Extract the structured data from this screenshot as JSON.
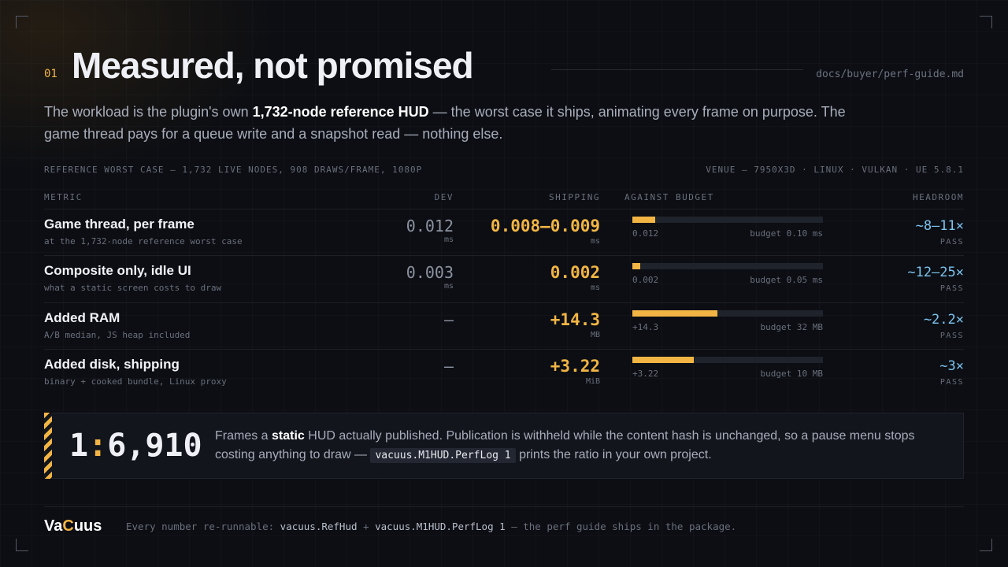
{
  "header": {
    "number": "01",
    "title": "Measured, not promised",
    "path": "docs/buyer/perf-guide.md"
  },
  "intro": [
    "The workload is the plugin's own ",
    "1,732-node reference HUD",
    " — the worst case it ships, animating every frame on purpose. The game thread pays for a queue write and a snapshot read — nothing else."
  ],
  "meta": {
    "left": "REFERENCE WORST CASE — 1,732 LIVE NODES, 908 DRAWS/FRAME, 1080P",
    "right": "VENUE — 7950X3D · LINUX · VULKAN · UE 5.8.1"
  },
  "table": {
    "columns": [
      "METRIC",
      "DEV",
      "SHIPPING",
      "AGAINST BUDGET",
      "HEADROOM"
    ],
    "rows": [
      {
        "name": "Game thread, per frame",
        "sub": "at the 1,732-node reference worst case",
        "dev": "0.012",
        "dev_unit": "ms",
        "shipping": "0.008–0.009",
        "shipping_unit": "ms",
        "bar": {
          "value": 0.012,
          "budget": 0.1,
          "label": "0.012",
          "budget_label": "budget 0.10 ms"
        },
        "headroom": "~8–11×",
        "status": "PASS"
      },
      {
        "name": "Composite only, idle UI",
        "sub": "what a static screen costs to draw",
        "dev": "0.003",
        "dev_unit": "ms",
        "shipping": "0.002",
        "shipping_unit": "ms",
        "bar": {
          "value": 0.002,
          "budget": 0.05,
          "label": "0.002",
          "budget_label": "budget 0.05 ms"
        },
        "headroom": "~12–25×",
        "status": "PASS"
      },
      {
        "name": "Added RAM",
        "sub": "A/B median, JS heap included",
        "dev": "—",
        "dev_unit": null,
        "shipping": "+14.3",
        "shipping_unit": "MB",
        "bar": {
          "value": 14.3,
          "budget": 32,
          "label": "+14.3",
          "budget_label": "budget 32 MB"
        },
        "headroom": "~2.2×",
        "status": "PASS"
      },
      {
        "name": "Added disk, shipping",
        "sub": "binary + cooked bundle, Linux proxy",
        "dev": "—",
        "dev_unit": null,
        "shipping": "+3.22",
        "shipping_unit": "MiB",
        "bar": {
          "value": 3.22,
          "budget": 10,
          "label": "+3.22",
          "budget_label": "budget 10 MB"
        },
        "headroom": "~3×",
        "status": "PASS"
      }
    ]
  },
  "callout": {
    "ratio": [
      "1",
      ":",
      "6,910"
    ],
    "text": [
      "Frames a ",
      "static",
      " HUD actually published. Publication is withheld while the content hash is unchanged, so a pause menu stops costing anything to draw — ",
      "vacuus.M1HUD.PerfLog 1",
      " prints the ratio in your own project."
    ]
  },
  "footer": {
    "logo": [
      "Va",
      "C",
      "uus"
    ],
    "text": [
      "Every number re-runnable: ",
      "vacuus.RefHud",
      " + ",
      "vacuus.M1HUD.PerfLog 1",
      " — the perf guide ships in the package."
    ]
  }
}
